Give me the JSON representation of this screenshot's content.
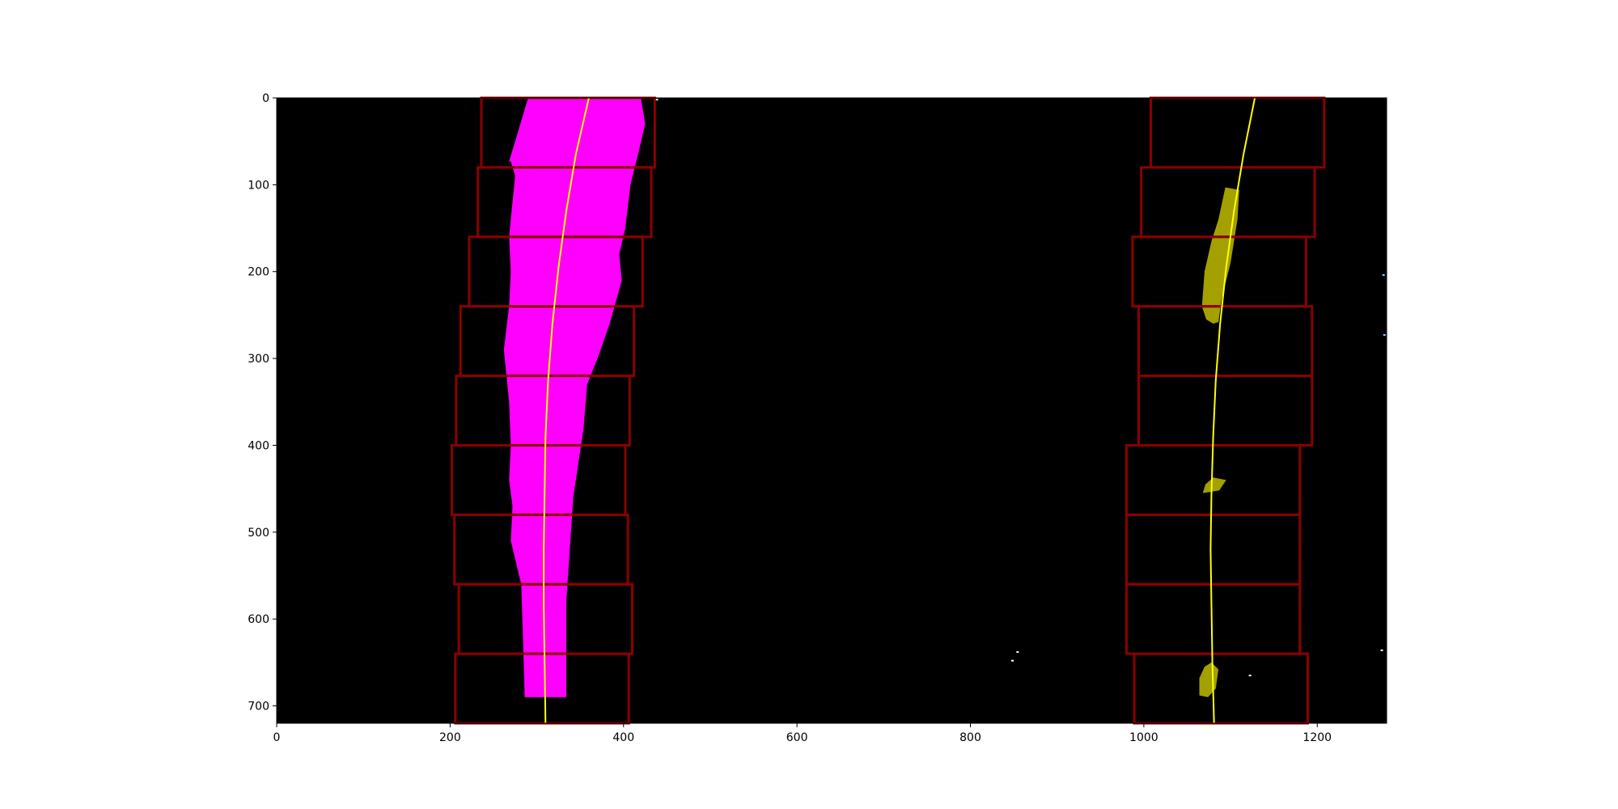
{
  "chart_data": {
    "type": "image",
    "title": "",
    "xlabel": "",
    "ylabel": "",
    "xlim": [
      0,
      1280
    ],
    "ylim": [
      720,
      0
    ],
    "x_ticks": [
      0,
      200,
      400,
      600,
      800,
      1000,
      1200
    ],
    "x_tick_labels": [
      "0",
      "200",
      "400",
      "600",
      "800",
      "1000",
      "1200"
    ],
    "y_ticks": [
      0,
      100,
      200,
      300,
      400,
      500,
      600,
      700
    ],
    "y_tick_labels": [
      "0",
      "100",
      "200",
      "300",
      "400",
      "500",
      "600",
      "700"
    ],
    "grid": false,
    "legend": "none",
    "background_color": "#000000",
    "colors": {
      "left_lane_pixels": "#ff00ff",
      "right_lane_pixels": "#a3a000",
      "window_boxes": "#8b0000",
      "fit_lines": "#ffff00"
    },
    "left_windows": [
      {
        "x1": 236,
        "x2": 436,
        "y1": 0,
        "y2": 80
      },
      {
        "x1": 232,
        "x2": 432,
        "y1": 80,
        "y2": 160
      },
      {
        "x1": 222,
        "x2": 422,
        "y1": 160,
        "y2": 240
      },
      {
        "x1": 212,
        "x2": 412,
        "y1": 240,
        "y2": 320
      },
      {
        "x1": 207,
        "x2": 407,
        "y1": 320,
        "y2": 400
      },
      {
        "x1": 202,
        "x2": 402,
        "y1": 400,
        "y2": 480
      },
      {
        "x1": 205,
        "x2": 405,
        "y1": 480,
        "y2": 560
      },
      {
        "x1": 210,
        "x2": 410,
        "y1": 560,
        "y2": 640
      },
      {
        "x1": 206,
        "x2": 406,
        "y1": 640,
        "y2": 720
      }
    ],
    "right_windows": [
      {
        "x1": 1008,
        "x2": 1208,
        "y1": 0,
        "y2": 80
      },
      {
        "x1": 997,
        "x2": 1197,
        "y1": 80,
        "y2": 160
      },
      {
        "x1": 987,
        "x2": 1187,
        "y1": 160,
        "y2": 240
      },
      {
        "x1": 994,
        "x2": 1194,
        "y1": 240,
        "y2": 320
      },
      {
        "x1": 994,
        "x2": 1194,
        "y1": 320,
        "y2": 400
      },
      {
        "x1": 980,
        "x2": 1180,
        "y1": 400,
        "y2": 480
      },
      {
        "x1": 980,
        "x2": 1180,
        "y1": 480,
        "y2": 560
      },
      {
        "x1": 980,
        "x2": 1180,
        "y1": 560,
        "y2": 640
      },
      {
        "x1": 989,
        "x2": 1189,
        "y1": 640,
        "y2": 720
      }
    ],
    "left_fit": {
      "x": [
        360,
        345,
        334,
        325,
        318,
        313,
        310,
        309,
        308,
        308,
        309,
        310
      ],
      "y": [
        0,
        65,
        130,
        195,
        260,
        325,
        390,
        455,
        520,
        585,
        650,
        720
      ]
    },
    "right_fit": {
      "x": [
        1128,
        1115,
        1104,
        1095,
        1088,
        1083,
        1080,
        1078,
        1077,
        1078,
        1079,
        1081
      ],
      "y": [
        0,
        65,
        130,
        195,
        260,
        325,
        390,
        455,
        520,
        585,
        650,
        720
      ]
    },
    "left_lane_region": {
      "x": [
        290,
        420,
        425,
        418,
        408,
        402,
        395,
        398,
        384,
        370,
        358,
        354,
        348,
        342,
        338,
        334,
        334,
        286,
        284,
        282,
        270,
        272,
        268,
        270,
        268,
        262,
        268,
        270,
        268,
        272,
        275,
        270,
        268,
        275,
        290
      ],
      "y": [
        0,
        0,
        30,
        60,
        100,
        150,
        180,
        210,
        260,
        300,
        330,
        380,
        420,
        460,
        520,
        580,
        690,
        690,
        620,
        560,
        510,
        470,
        440,
        400,
        350,
        290,
        240,
        200,
        160,
        120,
        90,
        73,
        73,
        50,
        0
      ]
    },
    "right_blobs": [
      {
        "x": [
          1094,
          1110,
          1108,
          1100,
          1090,
          1086,
          1080,
          1072,
          1067,
          1070,
          1078,
          1086,
          1094
        ],
        "y": [
          103,
          106,
          140,
          190,
          230,
          258,
          260,
          255,
          240,
          200,
          165,
          140,
          103
        ]
      },
      {
        "x": [
          1080,
          1095,
          1087,
          1068,
          1071,
          1080
        ],
        "y": [
          437,
          440,
          452,
          455,
          445,
          437
        ]
      },
      {
        "x": [
          1078,
          1086,
          1083,
          1074,
          1064,
          1064,
          1070,
          1078
        ],
        "y": [
          650,
          658,
          680,
          690,
          688,
          668,
          655,
          650
        ]
      }
    ],
    "noise_specks": [
      {
        "x": 848,
        "y": 648,
        "color": "#ffffff"
      },
      {
        "x": 854,
        "y": 638,
        "color": "#ffffff"
      },
      {
        "x": 1122,
        "y": 665,
        "color": "#ffffff"
      },
      {
        "x": 1276,
        "y": 204,
        "color": "#7fd3ff"
      },
      {
        "x": 1277,
        "y": 273,
        "color": "#7fd3ff"
      },
      {
        "x": 1274,
        "y": 636,
        "color": "#ffffff"
      },
      {
        "x": 438,
        "y": 2,
        "color": "#ffffff"
      }
    ]
  }
}
